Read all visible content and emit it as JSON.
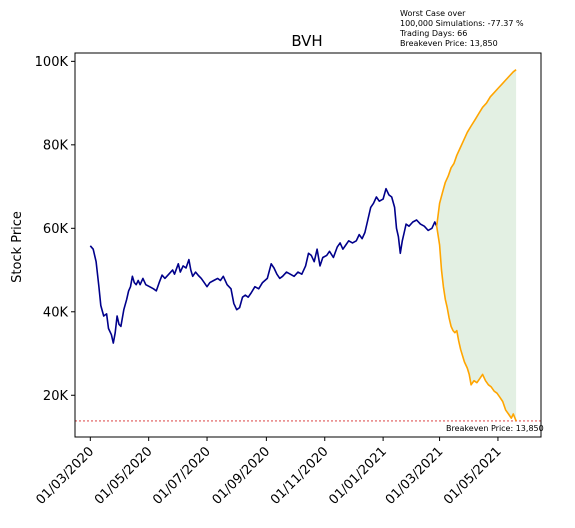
{
  "chart_data": {
    "type": "line",
    "title": "BVH",
    "xlabel": "",
    "ylabel": "Stock Price",
    "yticks": [
      {
        "value": 20000,
        "label": "20K"
      },
      {
        "value": 40000,
        "label": "40K"
      },
      {
        "value": 60000,
        "label": "60K"
      },
      {
        "value": 80000,
        "label": "80K"
      },
      {
        "value": 100000,
        "label": "100K"
      }
    ],
    "ylim": [
      10000,
      102000
    ],
    "xlim": [
      "2020-02-14",
      "2021-06-15"
    ],
    "xticks": [
      {
        "value": "2020-03-01",
        "label": "01/03/2020"
      },
      {
        "value": "2020-05-01",
        "label": "01/05/2020"
      },
      {
        "value": "2020-07-01",
        "label": "01/07/2020"
      },
      {
        "value": "2020-09-01",
        "label": "01/09/2020"
      },
      {
        "value": "2020-11-01",
        "label": "01/11/2020"
      },
      {
        "value": "2021-01-01",
        "label": "01/01/2021"
      },
      {
        "value": "2021-03-01",
        "label": "01/03/2021"
      },
      {
        "value": "2021-05-01",
        "label": "01/05/2021"
      }
    ],
    "annotation_lines": [
      "Worst Case over",
      "100,000 Simulations: -77.37 %",
      "Trading Days: 66",
      "Breakeven Price: 13,850"
    ],
    "breakeven": {
      "value": 13850,
      "label": "Breakeven Price: 13,850",
      "color": "#d62728"
    },
    "colors": {
      "history": "#00008b",
      "projection": "#ffa500",
      "fill": "#e3f0e3"
    },
    "history": [
      [
        "2020-03-01",
        55800
      ],
      [
        "2020-03-04",
        55000
      ],
      [
        "2020-03-07",
        52000
      ],
      [
        "2020-03-10",
        46000
      ],
      [
        "2020-03-12",
        41500
      ],
      [
        "2020-03-15",
        39000
      ],
      [
        "2020-03-18",
        39500
      ],
      [
        "2020-03-20",
        36000
      ],
      [
        "2020-03-23",
        34500
      ],
      [
        "2020-03-25",
        32500
      ],
      [
        "2020-03-27",
        35000
      ],
      [
        "2020-03-29",
        39000
      ],
      [
        "2020-03-31",
        37000
      ],
      [
        "2020-04-02",
        36500
      ],
      [
        "2020-04-05",
        40500
      ],
      [
        "2020-04-08",
        43000
      ],
      [
        "2020-04-10",
        45000
      ],
      [
        "2020-04-12",
        46000
      ],
      [
        "2020-04-14",
        48500
      ],
      [
        "2020-04-16",
        47000
      ],
      [
        "2020-04-18",
        46500
      ],
      [
        "2020-04-20",
        47500
      ],
      [
        "2020-04-22",
        46500
      ],
      [
        "2020-04-25",
        48000
      ],
      [
        "2020-04-28",
        46500
      ],
      [
        "2020-05-02",
        46000
      ],
      [
        "2020-05-06",
        45500
      ],
      [
        "2020-05-09",
        45000
      ],
      [
        "2020-05-12",
        47000
      ],
      [
        "2020-05-15",
        48800
      ],
      [
        "2020-05-18",
        48000
      ],
      [
        "2020-05-22",
        49000
      ],
      [
        "2020-05-26",
        50000
      ],
      [
        "2020-05-28",
        49000
      ],
      [
        "2020-06-01",
        51500
      ],
      [
        "2020-06-03",
        49500
      ],
      [
        "2020-06-06",
        51000
      ],
      [
        "2020-06-09",
        50500
      ],
      [
        "2020-06-12",
        52500
      ],
      [
        "2020-06-14",
        50000
      ],
      [
        "2020-06-16",
        48500
      ],
      [
        "2020-06-19",
        49500
      ],
      [
        "2020-06-22",
        48700
      ],
      [
        "2020-06-25",
        48000
      ],
      [
        "2020-06-28",
        47000
      ],
      [
        "2020-07-01",
        46000
      ],
      [
        "2020-07-04",
        47000
      ],
      [
        "2020-07-08",
        47500
      ],
      [
        "2020-07-12",
        48000
      ],
      [
        "2020-07-15",
        47500
      ],
      [
        "2020-07-18",
        48500
      ],
      [
        "2020-07-22",
        46500
      ],
      [
        "2020-07-26",
        45500
      ],
      [
        "2020-07-29",
        42000
      ],
      [
        "2020-08-01",
        40500
      ],
      [
        "2020-08-04",
        41000
      ],
      [
        "2020-08-07",
        43500
      ],
      [
        "2020-08-10",
        44000
      ],
      [
        "2020-08-13",
        43500
      ],
      [
        "2020-08-16",
        44500
      ],
      [
        "2020-08-20",
        46000
      ],
      [
        "2020-08-24",
        45500
      ],
      [
        "2020-08-28",
        47000
      ],
      [
        "2020-09-02",
        48000
      ],
      [
        "2020-09-06",
        51500
      ],
      [
        "2020-09-09",
        50500
      ],
      [
        "2020-09-12",
        49000
      ],
      [
        "2020-09-15",
        48000
      ],
      [
        "2020-09-18",
        48500
      ],
      [
        "2020-09-22",
        49500
      ],
      [
        "2020-09-26",
        49000
      ],
      [
        "2020-09-30",
        48500
      ],
      [
        "2020-10-04",
        49500
      ],
      [
        "2020-10-08",
        49000
      ],
      [
        "2020-10-12",
        51000
      ],
      [
        "2020-10-15",
        54000
      ],
      [
        "2020-10-18",
        53500
      ],
      [
        "2020-10-21",
        52000
      ],
      [
        "2020-10-24",
        55000
      ],
      [
        "2020-10-27",
        51000
      ],
      [
        "2020-10-30",
        53000
      ],
      [
        "2020-11-03",
        53500
      ],
      [
        "2020-11-06",
        54500
      ],
      [
        "2020-11-10",
        53000
      ],
      [
        "2020-11-14",
        55500
      ],
      [
        "2020-11-17",
        56500
      ],
      [
        "2020-11-20",
        55000
      ],
      [
        "2020-11-23",
        56000
      ],
      [
        "2020-11-26",
        57000
      ],
      [
        "2020-11-30",
        56500
      ],
      [
        "2020-12-04",
        57000
      ],
      [
        "2020-12-07",
        58500
      ],
      [
        "2020-12-10",
        57500
      ],
      [
        "2020-12-13",
        59000
      ],
      [
        "2020-12-16",
        62000
      ],
      [
        "2020-12-19",
        65000
      ],
      [
        "2020-12-22",
        66000
      ],
      [
        "2020-12-25",
        67500
      ],
      [
        "2020-12-28",
        66500
      ],
      [
        "2021-01-01",
        67000
      ],
      [
        "2021-01-04",
        69500
      ],
      [
        "2021-01-07",
        68000
      ],
      [
        "2021-01-10",
        67500
      ],
      [
        "2021-01-13",
        65000
      ],
      [
        "2021-01-15",
        60000
      ],
      [
        "2021-01-17",
        58000
      ],
      [
        "2021-01-19",
        54000
      ],
      [
        "2021-01-21",
        57000
      ],
      [
        "2021-01-23",
        59000
      ],
      [
        "2021-01-25",
        61000
      ],
      [
        "2021-01-28",
        60500
      ],
      [
        "2021-02-01",
        61500
      ],
      [
        "2021-02-05",
        62000
      ],
      [
        "2021-02-09",
        61000
      ],
      [
        "2021-02-13",
        60500
      ],
      [
        "2021-02-17",
        59500
      ],
      [
        "2021-02-21",
        60000
      ],
      [
        "2021-02-24",
        61500
      ],
      [
        "2021-02-26",
        60500
      ]
    ],
    "projection_upper": [
      [
        "2021-02-26",
        60500
      ],
      [
        "2021-03-01",
        66000
      ],
      [
        "2021-03-04",
        68500
      ],
      [
        "2021-03-07",
        71000
      ],
      [
        "2021-03-10",
        72500
      ],
      [
        "2021-03-13",
        74500
      ],
      [
        "2021-03-16",
        75500
      ],
      [
        "2021-03-19",
        77500
      ],
      [
        "2021-03-22",
        79000
      ],
      [
        "2021-03-26",
        81000
      ],
      [
        "2021-03-30",
        83000
      ],
      [
        "2021-04-03",
        84500
      ],
      [
        "2021-04-07",
        86000
      ],
      [
        "2021-04-11",
        87500
      ],
      [
        "2021-04-15",
        89000
      ],
      [
        "2021-04-19",
        90000
      ],
      [
        "2021-04-23",
        91500
      ],
      [
        "2021-04-27",
        92500
      ],
      [
        "2021-05-01",
        93500
      ],
      [
        "2021-05-05",
        94500
      ],
      [
        "2021-05-09",
        95500
      ],
      [
        "2021-05-13",
        96500
      ],
      [
        "2021-05-17",
        97500
      ],
      [
        "2021-05-20",
        98000
      ]
    ],
    "projection_lower": [
      [
        "2021-02-26",
        60500
      ],
      [
        "2021-03-01",
        56000
      ],
      [
        "2021-03-03",
        50000
      ],
      [
        "2021-03-05",
        46000
      ],
      [
        "2021-03-07",
        43000
      ],
      [
        "2021-03-09",
        41000
      ],
      [
        "2021-03-11",
        38500
      ],
      [
        "2021-03-13",
        36500
      ],
      [
        "2021-03-15",
        35500
      ],
      [
        "2021-03-17",
        35000
      ],
      [
        "2021-03-19",
        35500
      ],
      [
        "2021-03-21",
        33000
      ],
      [
        "2021-03-23",
        31000
      ],
      [
        "2021-03-25",
        29500
      ],
      [
        "2021-03-27",
        28000
      ],
      [
        "2021-03-30",
        26500
      ],
      [
        "2021-04-01",
        25000
      ],
      [
        "2021-04-03",
        22500
      ],
      [
        "2021-04-06",
        23500
      ],
      [
        "2021-04-09",
        23000
      ],
      [
        "2021-04-12",
        24000
      ],
      [
        "2021-04-15",
        25000
      ],
      [
        "2021-04-18",
        23500
      ],
      [
        "2021-04-21",
        22500
      ],
      [
        "2021-04-24",
        22000
      ],
      [
        "2021-04-27",
        21000
      ],
      [
        "2021-04-30",
        20500
      ],
      [
        "2021-05-03",
        19500
      ],
      [
        "2021-05-06",
        18500
      ],
      [
        "2021-05-09",
        16500
      ],
      [
        "2021-05-12",
        15500
      ],
      [
        "2021-05-15",
        14500
      ],
      [
        "2021-05-17",
        15500
      ],
      [
        "2021-05-20",
        13850
      ]
    ]
  }
}
